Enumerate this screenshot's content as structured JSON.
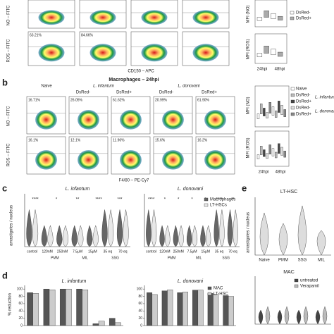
{
  "panel_a": {
    "y_labels": [
      "NO – FITC",
      "ROS – FITC"
    ],
    "x_label": "CD150 – APC",
    "percentages_ros": [
      "63.21%",
      "84.66%"
    ],
    "mfi_labels": [
      "MFI (NO)",
      "MFI (ROS)"
    ],
    "legend": [
      "DsRed-",
      "DsRed+"
    ],
    "times": [
      "24hpi",
      "48hpi"
    ]
  },
  "panel_b": {
    "label": "b",
    "title": "Macrophages – 24hpi",
    "groups": [
      "Naive",
      "L. infantum",
      "L. donovani"
    ],
    "subgroups": [
      "DsRed-",
      "DsRed+",
      "DsRed-",
      "DsRed+"
    ],
    "y_labels": [
      "NO – FITC",
      "ROS – FITC"
    ],
    "x_label": "F4/80 – PE-Cy7",
    "percentages_no": [
      "16.71%",
      "26.05%",
      "61.62%",
      "20.99%",
      "61.90%"
    ],
    "percentages_ros": [
      "16.1%",
      "12.1%",
      "11.96%",
      "15.6%",
      "16.2%"
    ],
    "mfi_labels": [
      "MFI (NO)",
      "MFI (ROS)"
    ],
    "legend": [
      "Naive",
      "DsRed-",
      "DsRed+",
      "DsRed-",
      "DsRed+"
    ],
    "legend_groups": [
      "L. infantum",
      "L. donovani"
    ],
    "times": [
      "24hpi",
      "48hpi"
    ]
  },
  "panel_c": {
    "label": "c",
    "titles": [
      "L. infantum",
      "L. donovani"
    ],
    "y_label": "amastigotes / nucleus",
    "legend": [
      "Macrophages",
      "LT-HSCs"
    ],
    "x_labels": [
      "control",
      "120nM",
      "250nM",
      "7.5μM",
      "15μM",
      "35 eq",
      "70 eq"
    ],
    "x_groups": [
      "PMM",
      "MIL",
      "SSG"
    ],
    "stars_left": [
      "****",
      "*",
      "**",
      "****",
      "***"
    ],
    "stars_right": [
      "****",
      "*",
      "*",
      "*",
      "*",
      "****",
      "**"
    ]
  },
  "panel_e": {
    "label": "e",
    "title": "LT-HSC",
    "title2": "MAC",
    "y_label": "amastigotes / nucleus",
    "x_labels": [
      "Naive",
      "PMM",
      "SSG",
      "MIL"
    ],
    "legend": [
      "untreated",
      "Verapamil"
    ]
  },
  "panel_d": {
    "label": "d",
    "y_label": "% reduction"
  },
  "chart_data": [
    {
      "type": "bar",
      "title": "L. infantum",
      "categories": [
        null,
        null,
        null,
        null,
        null,
        null
      ],
      "series": [
        {
          "color": "#555555",
          "values": [
            90,
            100,
            100,
            100,
            5,
            20
          ]
        },
        {
          "color": "#cccccc",
          "values": [
            88,
            98,
            100,
            98,
            12,
            8
          ]
        }
      ],
      "ylim": [
        0,
        110
      ],
      "yticks": [
        0,
        20,
        40,
        60,
        80,
        100
      ]
    },
    {
      "type": "bar",
      "title": "L. donovani",
      "categories": [
        null,
        null,
        null,
        null,
        null,
        null
      ],
      "series": [
        {
          "name": "MAC",
          "color": "#555555",
          "values": [
            90,
            95,
            90,
            97,
            88,
            82
          ]
        },
        {
          "name": "LT-HSC",
          "color": "#cccccc",
          "values": [
            85,
            98,
            92,
            97,
            86,
            80
          ]
        }
      ],
      "ylim": [
        0,
        110
      ],
      "yticks": [
        0,
        20,
        40,
        60,
        80,
        100
      ],
      "legend": "upper right"
    }
  ]
}
